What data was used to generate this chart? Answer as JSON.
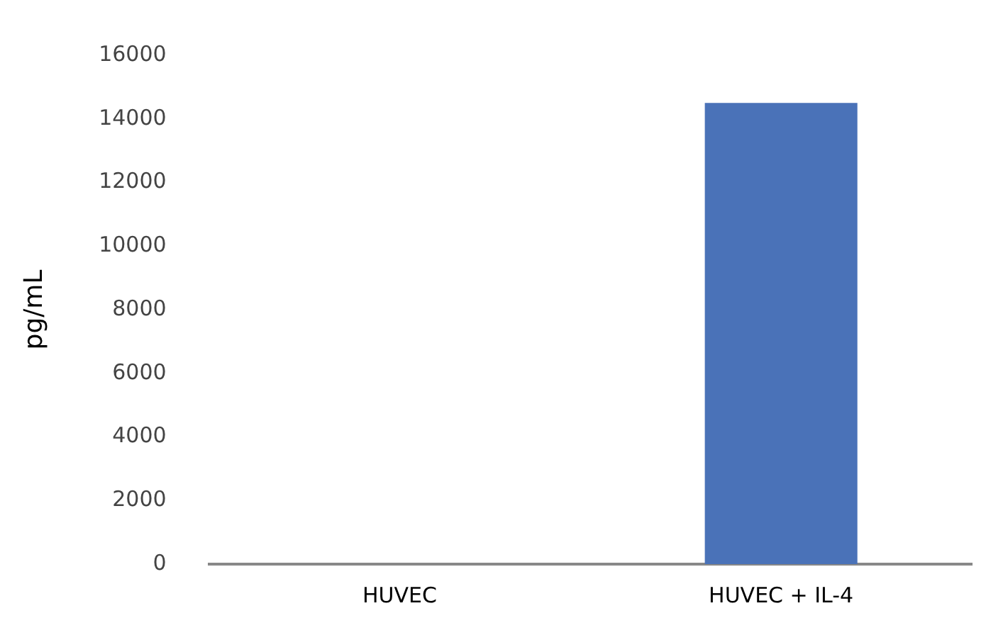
{
  "chart_data": {
    "type": "bar",
    "ylabel": "pg/mL",
    "categories": [
      "HUVEC",
      "HUVEC + IL-4"
    ],
    "values": [
      0,
      14500
    ],
    "color": "#4a72b8",
    "ylim": [
      0,
      16000
    ],
    "yticks": [
      0,
      2000,
      4000,
      6000,
      8000,
      10000,
      12000,
      14000,
      16000
    ],
    "grid": false,
    "legend": false
  }
}
